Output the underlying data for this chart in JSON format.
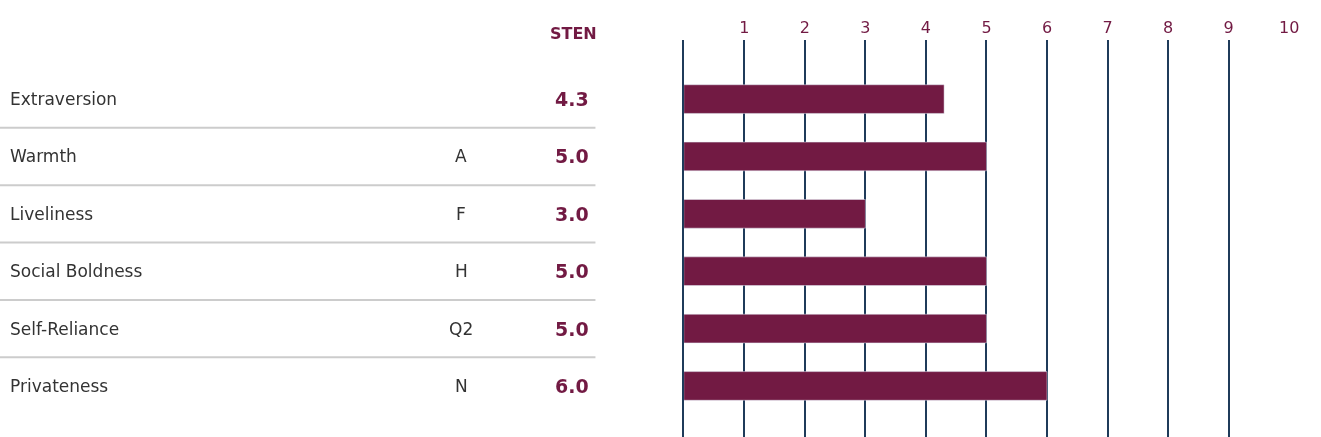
{
  "chart_data": {
    "type": "bar",
    "orientation": "horizontal",
    "categories": [
      "Extraversion",
      "Warmth",
      "Liveliness",
      "Social Boldness",
      "Self-Reliance",
      "Privateness"
    ],
    "values": [
      4.3,
      5.0,
      3.0,
      5.0,
      5.0,
      6.0
    ],
    "value_labels": [
      "4.3",
      "5.0",
      "3.0",
      "5.0",
      "5.0",
      "6.0"
    ],
    "color": "#721a43",
    "x2lim": [
      0,
      10
    ],
    "x2ticks": [
      1,
      2,
      3,
      4,
      5,
      6,
      7,
      8,
      9,
      10
    ],
    "grid": "x",
    "tick_labels": "x",
    "legend": false,
    "annotations": [
      "STEN",
      "A",
      "F",
      "H",
      "Q2",
      "N"
    ]
  }
}
